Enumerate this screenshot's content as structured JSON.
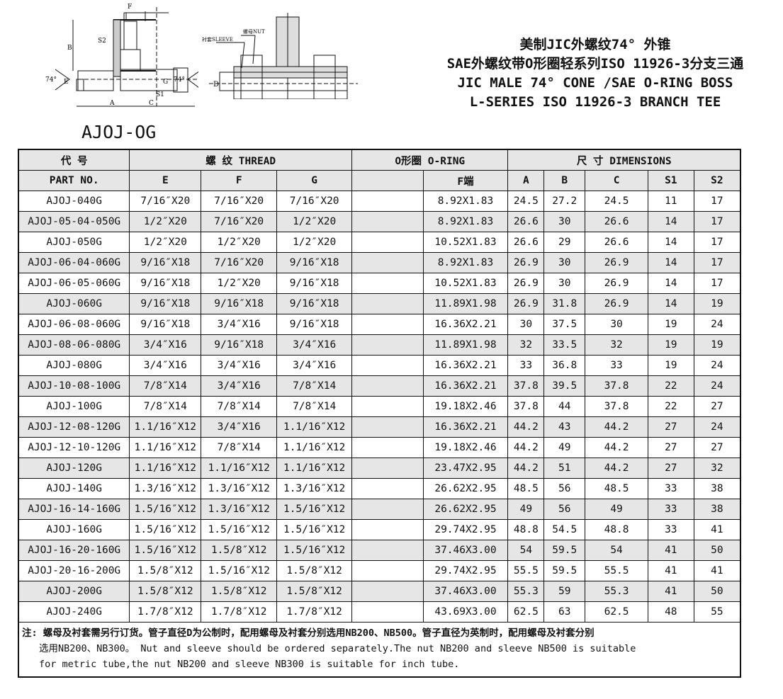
{
  "drawing": {
    "left_labels": [
      "F",
      "B",
      "S2",
      "74°",
      "E",
      "74°",
      "G",
      "S1",
      "A",
      "C"
    ],
    "right_labels": [
      "螺母NUT",
      "衬套SLEEVE",
      "D"
    ]
  },
  "title": {
    "line1": "美制JIC外螺纹74° 外锥",
    "line2": "SAE外螺纹带O形圈轻系列ISO 11926-3分支三通",
    "line3": "JIC MALE 74° CONE /SAE O-RING BOSS",
    "line4": "L-SERIES ISO 11926-3 BRANCH TEE"
  },
  "model": "AJOJ-OG",
  "table": {
    "header1": {
      "code": "代  号",
      "thread": "螺 纹    THREAD",
      "oring": "O形圈 O-RING",
      "dims": "尺 寸   DIMENSIONS"
    },
    "header2": [
      "PART  NO.",
      "E",
      "F",
      "G",
      "",
      "F端",
      "A",
      "B",
      "C",
      "S1",
      "S2"
    ],
    "rows": [
      [
        "AJOJ-040G",
        "7/16″X20",
        "7/16″X20",
        "7/16″X20",
        "",
        "8.92X1.83",
        "24.5",
        "27.2",
        "24.5",
        "11",
        "17"
      ],
      [
        "AJOJ-05-04-050G",
        "1/2″X20",
        "7/16″X20",
        "1/2″X20",
        "",
        "8.92X1.83",
        "26.6",
        "30",
        "26.6",
        "14",
        "17"
      ],
      [
        "AJOJ-050G",
        "1/2″X20",
        "1/2″X20",
        "1/2″X20",
        "",
        "10.52X1.83",
        "26.6",
        "29",
        "26.6",
        "14",
        "17"
      ],
      [
        "AJOJ-06-04-060G",
        "9/16″X18",
        "7/16″X20",
        "9/16″X18",
        "",
        "8.92X1.83",
        "26.9",
        "30",
        "26.9",
        "14",
        "17"
      ],
      [
        "AJOJ-06-05-060G",
        "9/16″X18",
        "1/2″X20",
        "9/16″X18",
        "",
        "10.52X1.83",
        "26.9",
        "30",
        "26.9",
        "14",
        "17"
      ],
      [
        "AJOJ-060G",
        "9/16″X18",
        "9/16″X18",
        "9/16″X18",
        "",
        "11.89X1.98",
        "26.9",
        "31.8",
        "26.9",
        "14",
        "19"
      ],
      [
        "AJOJ-06-08-060G",
        "9/16″X18",
        "3/4″X16",
        "9/16″X18",
        "",
        "16.36X2.21",
        "30",
        "37.5",
        "30",
        "19",
        "24"
      ],
      [
        "AJOJ-08-06-080G",
        "3/4″X16",
        "9/16″X18",
        "3/4″X16",
        "",
        "11.89X1.98",
        "32",
        "33.5",
        "32",
        "19",
        "19"
      ],
      [
        "AJOJ-080G",
        "3/4″X16",
        "3/4″X16",
        "3/4″X16",
        "",
        "16.36X2.21",
        "33",
        "36.8",
        "33",
        "19",
        "24"
      ],
      [
        "AJOJ-10-08-100G",
        "7/8″X14",
        "3/4″X16",
        "7/8″X14",
        "",
        "16.36X2.21",
        "37.8",
        "39.5",
        "37.8",
        "22",
        "24"
      ],
      [
        "AJOJ-100G",
        "7/8″X14",
        "7/8″X14",
        "7/8″X14",
        "",
        "19.18X2.46",
        "37.8",
        "44",
        "37.8",
        "22",
        "27"
      ],
      [
        "AJOJ-12-08-120G",
        "1.1/16″X12",
        "3/4″X16",
        "1.1/16″X12",
        "",
        "16.36X2.21",
        "44.2",
        "43",
        "44.2",
        "27",
        "24"
      ],
      [
        "AJOJ-12-10-120G",
        "1.1/16″X12",
        "7/8″X14",
        "1.1/16″X12",
        "",
        "19.18X2.46",
        "44.2",
        "49",
        "44.2",
        "27",
        "27"
      ],
      [
        "AJOJ-120G",
        "1.1/16″X12",
        "1.1/16″X12",
        "1.1/16″X12",
        "",
        "23.47X2.95",
        "44.2",
        "51",
        "44.2",
        "27",
        "32"
      ],
      [
        "AJOJ-140G",
        "1.3/16″X12",
        "1.3/16″X12",
        "1.3/16″X12",
        "",
        "26.62X2.95",
        "48.5",
        "56",
        "48.5",
        "33",
        "38"
      ],
      [
        "AJOJ-16-14-160G",
        "1.5/16″X12",
        "1.3/16″X12",
        "1.5/16″X12",
        "",
        "26.62X2.95",
        "49",
        "56",
        "49",
        "33",
        "38"
      ],
      [
        "AJOJ-160G",
        "1.5/16″X12",
        "1.5/16″X12",
        "1.5/16″X12",
        "",
        "29.74X2.95",
        "48.8",
        "54.5",
        "48.8",
        "33",
        "41"
      ],
      [
        "AJOJ-16-20-160G",
        "1.5/16″X12",
        "1.5/8″X12",
        "1.5/16″X12",
        "",
        "37.46X3.00",
        "54",
        "59.5",
        "54",
        "41",
        "50"
      ],
      [
        "AJOJ-20-16-200G",
        "1.5/8″X12",
        "1.5/16″X12",
        "1.5/8″X12",
        "",
        "29.74X2.95",
        "55.5",
        "59.5",
        "55.5",
        "41",
        "41"
      ],
      [
        "AJOJ-200G",
        "1.5/8″X12",
        "1.5/8″X12",
        "1.5/8″X12",
        "",
        "37.46X3.00",
        "55.3",
        "59",
        "55.3",
        "41",
        "50"
      ],
      [
        "AJOJ-240G",
        "1.7/8″X12",
        "1.7/8″X12",
        "1.7/8″X12",
        "",
        "43.69X3.00",
        "62.5",
        "63",
        "62.5",
        "48",
        "55"
      ]
    ],
    "note": {
      "line1": "注: 螺母及衬套需另行订货。管子直径D为公制时，配用螺母及衬套分别选用NB200、NB500。管子直径为英制时，配用螺母及衬套分别",
      "line2": "选用NB200、NB300。    Nut and sleeve should be ordered separately.The nut NB200 and sleeve NB500 is suitable",
      "line3": "for metric tube,the nut NB200 and sleeve NB300 is suitable for inch tube."
    }
  },
  "colors": {
    "shade": "#e6e6e6",
    "line": "#111111"
  }
}
